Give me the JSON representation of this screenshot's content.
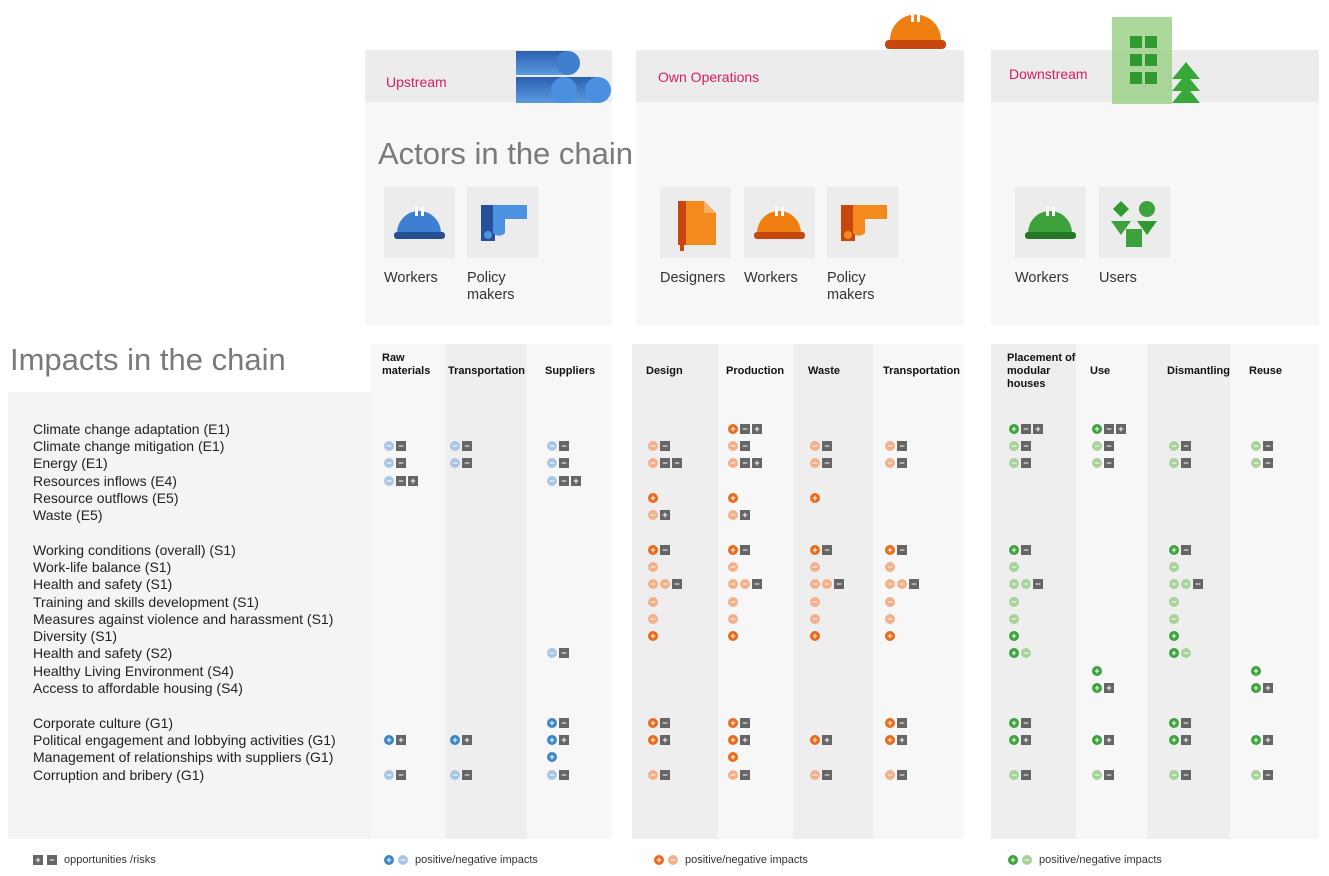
{
  "stages": [
    {
      "label": "Upstream"
    },
    {
      "label": "Own Operations"
    },
    {
      "label": "Downstream"
    }
  ],
  "actors_title": "Actors in the chain",
  "impacts_title": "Impacts in the chain",
  "actors": [
    {
      "label": "Workers",
      "icon": "blue-helmet-icon"
    },
    {
      "label": "Policy makers",
      "icon": "blue-pointing-hand-icon"
    },
    {
      "label": "Designers",
      "icon": "orange-document-icon"
    },
    {
      "label": "Workers",
      "icon": "orange-helmet-icon"
    },
    {
      "label": "Policy makers",
      "icon": "orange-pointing-hand-icon"
    },
    {
      "label": "Workers",
      "icon": "green-helmet-icon"
    },
    {
      "label": "Users",
      "icon": "green-shapes-icon"
    }
  ],
  "columns": [
    {
      "label": "Raw materials",
      "stage": 0
    },
    {
      "label": "Transportation",
      "stage": 0
    },
    {
      "label": "Suppliers",
      "stage": 0
    },
    {
      "label": "Design",
      "stage": 1
    },
    {
      "label": "Production",
      "stage": 1
    },
    {
      "label": "Waste",
      "stage": 1
    },
    {
      "label": "Transportation",
      "stage": 1
    },
    {
      "label": "Placement of modular houses",
      "stage": 2
    },
    {
      "label": "Use",
      "stage": 2
    },
    {
      "label": "Dismantling",
      "stage": 2
    },
    {
      "label": "Reuse",
      "stage": 2
    }
  ],
  "colors": {
    "upstream_pos": "#3a86c8",
    "upstream_neg": "#a9c6e6",
    "ownops_pos": "#ea6a1a",
    "ownops_neg": "#f4b08a",
    "downstream_pos": "#3ca23c",
    "downstream_neg": "#a8d39a",
    "risk_box": "#666666",
    "title_red": "#d81e5b"
  },
  "rows": [
    {
      "label": "Climate change adaptation (E1)",
      "cells": [
        "",
        "",
        "",
        "",
        "P-+",
        "",
        "",
        "P-+",
        "P-+",
        "",
        ""
      ]
    },
    {
      "label": "Climate change mitigation (E1)",
      "cells": [
        "N-",
        "N-",
        "N-",
        "N-",
        "N-",
        "N-",
        "N-",
        "N-",
        "N-",
        "N-",
        "N-"
      ]
    },
    {
      "label": "Energy (E1)",
      "cells": [
        "N-",
        "N-",
        "N-",
        "N--",
        "N-+",
        "N-",
        "N-",
        "N-",
        "N-",
        "N-",
        "N-"
      ]
    },
    {
      "label": "Resources inflows (E4)",
      "cells": [
        "N-+",
        "",
        "N-+",
        "",
        "",
        "",
        "",
        "",
        "",
        "",
        ""
      ]
    },
    {
      "label": "Resource outflows (E5)",
      "cells": [
        "",
        "",
        "",
        "P",
        "P",
        "P",
        "",
        "",
        "",
        "",
        ""
      ]
    },
    {
      "label": "Waste (E5)",
      "cells": [
        "",
        "",
        "",
        "N+",
        "N+",
        "",
        "",
        "",
        "",
        "",
        ""
      ]
    },
    {
      "label": "Working conditions (overall) (S1)",
      "cells": [
        "",
        "",
        "",
        "P-",
        "P-",
        "P-",
        "P-",
        "P-",
        "",
        "P-",
        ""
      ]
    },
    {
      "label": "Work-life balance (S1)",
      "cells": [
        "",
        "",
        "",
        "N",
        "N",
        "N",
        "N",
        "N",
        "",
        "N",
        ""
      ]
    },
    {
      "label": "Health and safety (S1)",
      "cells": [
        "",
        "",
        "",
        "NN-",
        "NN-",
        "NN-",
        "NN-",
        "NN-",
        "",
        "NN-",
        ""
      ]
    },
    {
      "label": "Training and skills development (S1)",
      "cells": [
        "",
        "",
        "",
        "N",
        "N",
        "N",
        "N",
        "N",
        "",
        "N",
        ""
      ]
    },
    {
      "label": "Measures against violence and harassment (S1)",
      "cells": [
        "",
        "",
        "",
        "N",
        "N",
        "N",
        "N",
        "N",
        "",
        "N",
        ""
      ]
    },
    {
      "label": "Diversity (S1)",
      "cells": [
        "",
        "",
        "",
        "P",
        "P",
        "P",
        "P",
        "P",
        "",
        "P",
        ""
      ]
    },
    {
      "label": "Health and safety (S2)",
      "cells": [
        "",
        "",
        "N-",
        "",
        "",
        "",
        "",
        "PN",
        "",
        "PN",
        ""
      ]
    },
    {
      "label": "Healthy Living Environment (S4)",
      "cells": [
        "",
        "",
        "",
        "",
        "",
        "",
        "",
        "",
        "P",
        "",
        "P"
      ]
    },
    {
      "label": "Access to affordable housing (S4)",
      "cells": [
        "",
        "",
        "",
        "",
        "",
        "",
        "",
        "",
        "P+",
        "",
        "P+"
      ]
    },
    {
      "label": "Corporate culture (G1)",
      "cells": [
        "",
        "",
        "P-",
        "P-",
        "P-",
        "",
        "P-",
        "P-",
        "",
        "P-",
        ""
      ]
    },
    {
      "label": "Political engagement and lobbying activities (G1)",
      "cells": [
        "P+",
        "P+",
        "P+",
        "P+",
        "P+",
        "P+",
        "P+",
        "P+",
        "P+",
        "P+",
        "P+"
      ]
    },
    {
      "label": "Management of relationships with suppliers (G1)",
      "cells": [
        "",
        "",
        "P",
        "",
        "P",
        "",
        "",
        "",
        "",
        "",
        ""
      ]
    },
    {
      "label": "Corruption and bribery (G1)",
      "cells": [
        "N-",
        "N-",
        "N-",
        "N-",
        "N-",
        "N-",
        "N-",
        "N-",
        "N-",
        "N-",
        "N-"
      ]
    }
  ],
  "legend": {
    "risks": "opportunities /risks",
    "upstream": "positive/negative impacts",
    "ownops": "positive/negative impacts",
    "downstream": "positive/negative impacts"
  }
}
